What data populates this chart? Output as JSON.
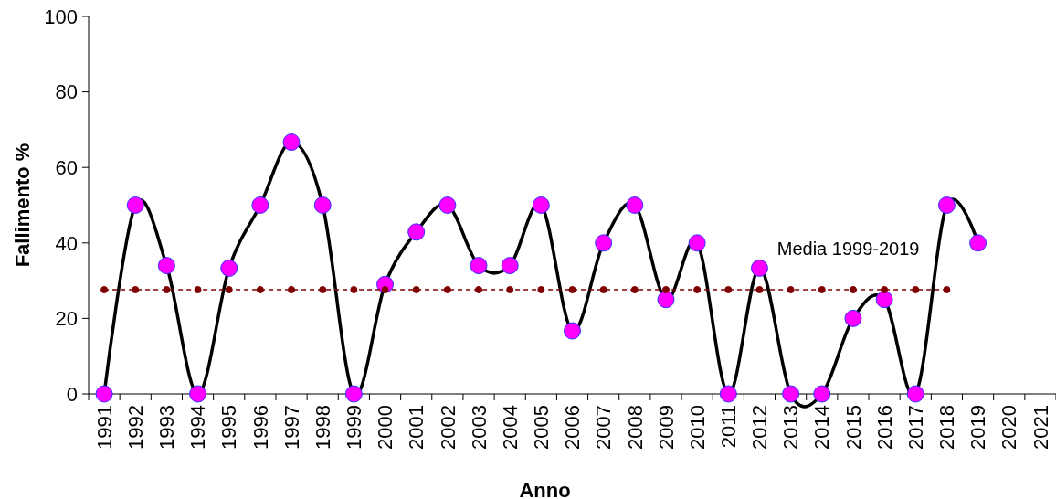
{
  "chart_data": {
    "type": "line",
    "xlabel": "Anno",
    "ylabel": "Fallimento %",
    "categories": [
      "1991",
      "1992",
      "1993",
      "1994",
      "1995",
      "1996",
      "1997",
      "1998",
      "1999",
      "2000",
      "2001",
      "2002",
      "2003",
      "2004",
      "2005",
      "2006",
      "2007",
      "2008",
      "2009",
      "2010",
      "2011",
      "2012",
      "2013",
      "2014",
      "2015",
      "2016",
      "2017",
      "2018",
      "2019",
      "2020",
      "2021"
    ],
    "series": [
      {
        "color": "#000000",
        "marker": "circle",
        "line_style": "solid",
        "values": [
          0,
          50,
          34,
          0,
          33.3,
          50,
          66.7,
          50,
          0,
          29,
          42.9,
          50,
          34,
          34,
          50,
          16.7,
          40,
          50,
          25,
          40,
          0,
          33.3,
          0,
          0,
          20,
          25,
          0,
          50,
          40,
          null,
          null
        ]
      },
      {
        "name": "Media 1999-2019",
        "color": "#800000",
        "marker": "circle",
        "line_style": "dashed",
        "values": [
          27.6,
          27.6,
          27.6,
          27.6,
          27.6,
          27.6,
          27.6,
          27.6,
          27.6,
          27.6,
          27.6,
          27.6,
          27.6,
          27.6,
          27.6,
          27.6,
          27.6,
          27.6,
          27.6,
          27.6,
          27.6,
          27.6,
          27.6,
          27.6,
          27.6,
          27.6,
          27.6,
          27.6,
          null,
          null,
          null
        ]
      }
    ],
    "ylim": [
      0,
      100
    ],
    "yticks": [
      0,
      20,
      40,
      60,
      80,
      100
    ],
    "grid": false
  }
}
